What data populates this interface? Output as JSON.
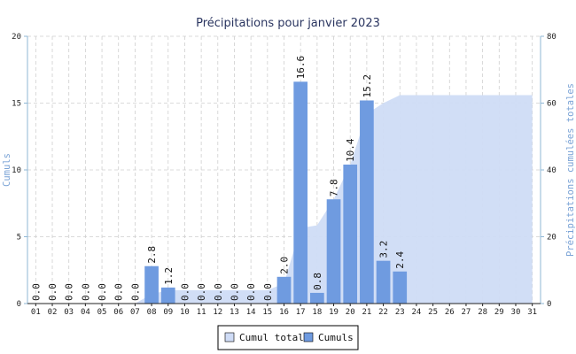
{
  "chart_data": {
    "type": "bar",
    "title": "Précipitations pour janvier 2023",
    "xlabel": "",
    "ylabel": "Cumuls",
    "y2label": "Précipitations cumulées totales",
    "ylim": [
      0,
      20
    ],
    "y2lim": [
      0,
      80
    ],
    "yticks": [
      "0",
      "5",
      "10",
      "15",
      "20"
    ],
    "y2ticks": [
      "0",
      "20",
      "40",
      "60",
      "80"
    ],
    "grid": true,
    "legend_position": "bottom-center",
    "categories": [
      "01",
      "02",
      "03",
      "04",
      "05",
      "06",
      "07",
      "08",
      "09",
      "10",
      "11",
      "12",
      "13",
      "14",
      "15",
      "16",
      "17",
      "18",
      "19",
      "20",
      "21",
      "22",
      "23",
      "24",
      "25",
      "26",
      "27",
      "28",
      "29",
      "30",
      "31"
    ],
    "series": [
      {
        "name": "Cumuls",
        "type": "bar",
        "axis": "left",
        "color": "#6f9be0",
        "values": [
          0.0,
          0.0,
          0.0,
          0.0,
          0.0,
          0.0,
          0.0,
          2.8,
          1.2,
          0.0,
          0.0,
          0.0,
          0.0,
          0.0,
          0.0,
          2.0,
          16.6,
          0.8,
          7.8,
          10.4,
          15.2,
          3.2,
          2.4,
          null,
          null,
          null,
          null,
          null,
          null,
          null,
          null
        ],
        "labels": [
          "0.0",
          "0.0",
          "0.0",
          "0.0",
          "0.0",
          "0.0",
          "0.0",
          "2.8",
          "1.2",
          "0.0",
          "0.0",
          "0.0",
          "0.0",
          "0.0",
          "0.0",
          "2.0",
          "16.6",
          "0.8",
          "7.8",
          "10.4",
          "15.2",
          "3.2",
          "2.4",
          "",
          "",
          "",
          "",
          "",
          "",
          "",
          ""
        ]
      },
      {
        "name": "Cumul total",
        "type": "area",
        "axis": "right",
        "color": "#cfdcf6",
        "values": [
          0.0,
          0.0,
          0.0,
          0.0,
          0.0,
          0.0,
          0.0,
          2.8,
          4.0,
          4.0,
          4.0,
          4.0,
          4.0,
          4.0,
          4.0,
          6.0,
          22.6,
          23.4,
          31.2,
          41.6,
          56.8,
          60.0,
          62.4,
          62.4,
          62.4,
          62.4,
          62.4,
          62.4,
          62.4,
          62.4,
          62.4
        ]
      }
    ]
  }
}
